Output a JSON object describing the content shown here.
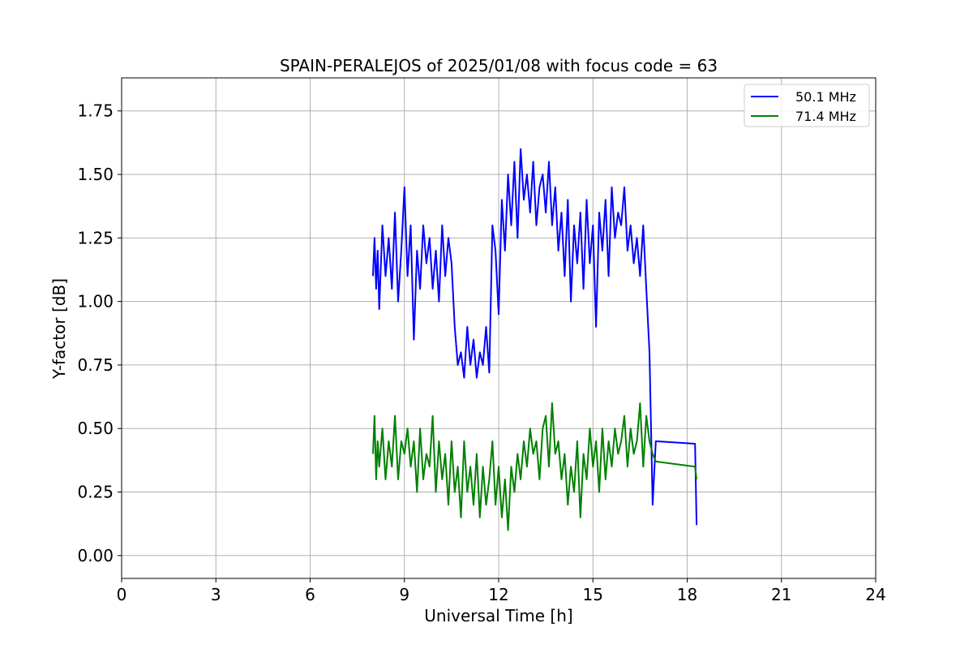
{
  "chart_data": {
    "type": "line",
    "title": "SPAIN-PERALEJOS of 2025/01/08 with focus code = 63",
    "xlabel": "Universal Time [h]",
    "ylabel": "Y-factor [dB]",
    "xlim": [
      0,
      24
    ],
    "ylim": [
      -0.09,
      1.88
    ],
    "xticks": [
      0,
      3,
      6,
      9,
      12,
      15,
      18,
      21,
      24
    ],
    "xtick_labels": [
      "0",
      "3",
      "6",
      "9",
      "12",
      "15",
      "18",
      "21",
      "24"
    ],
    "yticks": [
      0.0,
      0.25,
      0.5,
      0.75,
      1.0,
      1.25,
      1.5,
      1.75
    ],
    "ytick_labels": [
      "0.00",
      "0.25",
      "0.50",
      "0.75",
      "1.00",
      "1.25",
      "1.50",
      "1.75"
    ],
    "grid": true,
    "legend_position": "top-right",
    "series": [
      {
        "name": "50.1 MHz",
        "color": "#0000ff",
        "x": [
          8.0,
          8.05,
          8.1,
          8.15,
          8.2,
          8.3,
          8.4,
          8.5,
          8.6,
          8.7,
          8.8,
          8.9,
          9.0,
          9.1,
          9.2,
          9.3,
          9.4,
          9.5,
          9.6,
          9.7,
          9.8,
          9.9,
          10.0,
          10.1,
          10.2,
          10.3,
          10.4,
          10.5,
          10.6,
          10.7,
          10.8,
          10.9,
          11.0,
          11.1,
          11.2,
          11.3,
          11.4,
          11.5,
          11.6,
          11.7,
          11.8,
          11.9,
          12.0,
          12.1,
          12.2,
          12.3,
          12.4,
          12.5,
          12.6,
          12.7,
          12.8,
          12.9,
          13.0,
          13.1,
          13.2,
          13.3,
          13.4,
          13.5,
          13.6,
          13.7,
          13.8,
          13.9,
          14.0,
          14.1,
          14.2,
          14.3,
          14.4,
          14.5,
          14.6,
          14.7,
          14.8,
          14.9,
          15.0,
          15.1,
          15.2,
          15.3,
          15.4,
          15.5,
          15.6,
          15.7,
          15.8,
          15.9,
          16.0,
          16.1,
          16.2,
          16.3,
          16.4,
          16.5,
          16.6,
          16.7,
          16.8,
          16.9,
          17.0,
          18.25,
          18.3
        ],
        "y": [
          1.1,
          1.25,
          1.05,
          1.2,
          0.97,
          1.3,
          1.1,
          1.25,
          1.05,
          1.35,
          1.0,
          1.2,
          1.45,
          1.1,
          1.3,
          0.85,
          1.2,
          1.05,
          1.3,
          1.15,
          1.25,
          1.05,
          1.2,
          1.0,
          1.3,
          1.1,
          1.25,
          1.15,
          0.9,
          0.75,
          0.8,
          0.7,
          0.9,
          0.75,
          0.85,
          0.7,
          0.8,
          0.75,
          0.9,
          0.72,
          1.3,
          1.2,
          0.95,
          1.4,
          1.2,
          1.5,
          1.3,
          1.55,
          1.25,
          1.6,
          1.4,
          1.5,
          1.35,
          1.55,
          1.3,
          1.45,
          1.5,
          1.35,
          1.55,
          1.3,
          1.45,
          1.2,
          1.35,
          1.1,
          1.4,
          1.0,
          1.3,
          1.15,
          1.35,
          1.05,
          1.4,
          1.15,
          1.3,
          0.9,
          1.35,
          1.2,
          1.4,
          1.1,
          1.45,
          1.25,
          1.35,
          1.3,
          1.45,
          1.2,
          1.3,
          1.15,
          1.25,
          1.1,
          1.3,
          1.05,
          0.8,
          0.2,
          0.45,
          0.44,
          0.12
        ]
      },
      {
        "name": "71.4 MHz",
        "color": "#008000",
        "x": [
          8.0,
          8.05,
          8.1,
          8.15,
          8.2,
          8.3,
          8.4,
          8.5,
          8.6,
          8.7,
          8.8,
          8.9,
          9.0,
          9.1,
          9.2,
          9.3,
          9.4,
          9.5,
          9.6,
          9.7,
          9.8,
          9.9,
          10.0,
          10.1,
          10.2,
          10.3,
          10.4,
          10.5,
          10.6,
          10.7,
          10.8,
          10.9,
          11.0,
          11.1,
          11.2,
          11.3,
          11.4,
          11.5,
          11.6,
          11.7,
          11.8,
          11.9,
          12.0,
          12.1,
          12.2,
          12.3,
          12.4,
          12.5,
          12.6,
          12.7,
          12.8,
          12.9,
          13.0,
          13.1,
          13.2,
          13.3,
          13.4,
          13.5,
          13.6,
          13.7,
          13.8,
          13.9,
          14.0,
          14.1,
          14.2,
          14.3,
          14.4,
          14.5,
          14.6,
          14.7,
          14.8,
          14.9,
          15.0,
          15.1,
          15.2,
          15.3,
          15.4,
          15.5,
          15.6,
          15.7,
          15.8,
          15.9,
          16.0,
          16.1,
          16.2,
          16.3,
          16.4,
          16.5,
          16.6,
          16.7,
          16.8,
          16.9,
          17.0,
          18.25,
          18.3
        ],
        "y": [
          0.4,
          0.55,
          0.3,
          0.45,
          0.35,
          0.5,
          0.3,
          0.45,
          0.35,
          0.55,
          0.3,
          0.45,
          0.4,
          0.5,
          0.35,
          0.45,
          0.25,
          0.5,
          0.3,
          0.4,
          0.35,
          0.55,
          0.25,
          0.45,
          0.3,
          0.4,
          0.2,
          0.45,
          0.25,
          0.35,
          0.15,
          0.45,
          0.25,
          0.35,
          0.2,
          0.4,
          0.15,
          0.35,
          0.2,
          0.3,
          0.45,
          0.2,
          0.35,
          0.15,
          0.3,
          0.1,
          0.35,
          0.25,
          0.4,
          0.3,
          0.45,
          0.35,
          0.5,
          0.4,
          0.45,
          0.3,
          0.5,
          0.55,
          0.35,
          0.6,
          0.4,
          0.45,
          0.3,
          0.4,
          0.2,
          0.35,
          0.25,
          0.45,
          0.15,
          0.4,
          0.3,
          0.5,
          0.35,
          0.45,
          0.25,
          0.5,
          0.3,
          0.45,
          0.35,
          0.5,
          0.4,
          0.45,
          0.55,
          0.35,
          0.5,
          0.4,
          0.45,
          0.6,
          0.35,
          0.55,
          0.45,
          0.4,
          0.37,
          0.35,
          0.3
        ]
      }
    ]
  }
}
